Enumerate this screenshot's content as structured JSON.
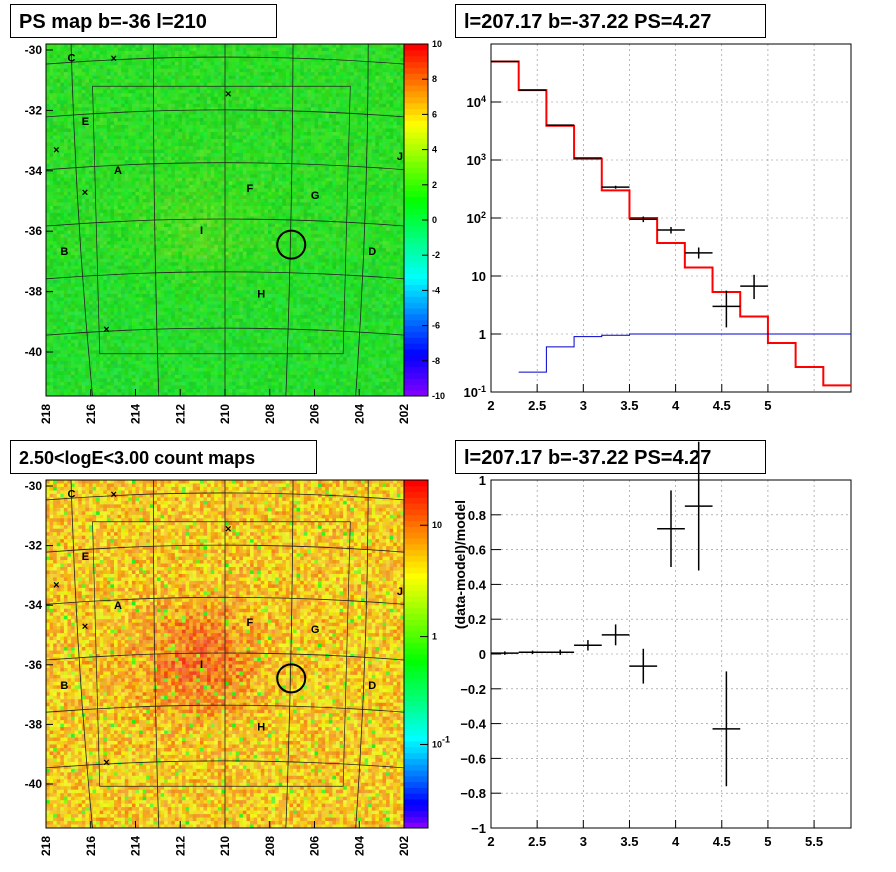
{
  "panels": {
    "tl_title": "PS map b=-36 l=210",
    "tr_title": "l=207.17 b=-37.22 PS=4.27",
    "bl_title": "2.50<logE<3.00 count maps",
    "br_title": "l=207.17 b=-37.22 PS=4.27"
  },
  "colors": {
    "data": "#000000",
    "model": "#ff0000",
    "ps": "#0000cc",
    "grid": "#888888"
  },
  "chart_data": [
    {
      "type": "heatmap",
      "title": "PS map b=-36 l=210",
      "x_ticks": [
        "218",
        "216",
        "214",
        "212",
        "210",
        "208",
        "206",
        "204",
        "202"
      ],
      "y_ticks": [
        "-30",
        "-32",
        "-34",
        "-36",
        "-38",
        "-40"
      ],
      "colorbar_ticks": [
        "10",
        "8",
        "6",
        "4",
        "2",
        "0",
        "-2",
        "-4",
        "-6",
        "-8",
        "-10"
      ],
      "colorbar_range": [
        -10,
        10
      ],
      "source_labels": [
        "C",
        "E",
        "A",
        "F",
        "G",
        "I",
        "B",
        "D",
        "H",
        "J"
      ]
    },
    {
      "type": "line",
      "title": "l=207.17 b=-37.22 PS=4.27",
      "xlim": [
        2,
        5.9
      ],
      "ylim_log": [
        0.1,
        100000
      ],
      "log_y": true,
      "x_ticks": [
        "2",
        "2.5",
        "3",
        "3.5",
        "4",
        "4.5",
        "5"
      ],
      "y_ticks": [
        "10^-1",
        "1",
        "10",
        "10^2",
        "10^3",
        "10^4"
      ],
      "series": [
        {
          "values_step": [
            [
              2.0,
              2.3,
              50000
            ],
            [
              2.3,
              2.6,
              16000
            ],
            [
              2.6,
              2.9,
              3900
            ],
            [
              2.9,
              3.2,
              1050
            ],
            [
              3.2,
              3.5,
              300
            ],
            [
              3.5,
              3.8,
              100
            ],
            [
              3.8,
              4.1,
              37
            ],
            [
              4.1,
              4.4,
              14
            ],
            [
              4.4,
              4.7,
              5.3
            ],
            [
              4.7,
              5.0,
              2.0
            ],
            [
              5.0,
              5.3,
              0.7
            ],
            [
              5.3,
              5.6,
              0.27
            ],
            [
              5.6,
              5.9,
              0.13
            ]
          ]
        },
        {
          "values_step": [
            [
              2.3,
              2.6,
              0.22
            ],
            [
              2.6,
              2.9,
              0.6
            ],
            [
              2.9,
              3.2,
              0.9
            ],
            [
              3.2,
              3.5,
              0.95
            ],
            [
              3.5,
              5.9,
              1.0
            ]
          ]
        },
        {
          "points": [
            {
              "x": 2.15,
              "y": 50000,
              "xerr": 0.15
            },
            {
              "x": 2.45,
              "y": 16000,
              "xerr": 0.15
            },
            {
              "x": 2.75,
              "y": 4000,
              "xerr": 0.15
            },
            {
              "x": 3.05,
              "y": 1080,
              "xerr": 0.15
            },
            {
              "x": 3.35,
              "y": 340,
              "xerr": 0.15,
              "ylo": 320,
              "yhi": 360
            },
            {
              "x": 3.65,
              "y": 95,
              "xerr": 0.15,
              "ylo": 85,
              "yhi": 106
            },
            {
              "x": 3.95,
              "y": 62,
              "xerr": 0.15,
              "ylo": 54,
              "yhi": 70
            },
            {
              "x": 4.25,
              "y": 25,
              "xerr": 0.15,
              "ylo": 20,
              "yhi": 31
            },
            {
              "x": 4.55,
              "y": 3.0,
              "xerr": 0.15,
              "ylo": 1.3,
              "yhi": 5.6
            },
            {
              "x": 4.85,
              "y": 6.7,
              "xerr": 0.15,
              "ylo": 4.0,
              "yhi": 10.5
            }
          ]
        }
      ]
    },
    {
      "type": "heatmap",
      "title": "2.50<logE<3.00 count maps",
      "x_ticks": [
        "218",
        "216",
        "214",
        "212",
        "210",
        "208",
        "206",
        "204",
        "202"
      ],
      "y_ticks": [
        "-30",
        "-32",
        "-34",
        "-36",
        "-38",
        "-40"
      ],
      "colorbar_ticks": [
        "10",
        "1",
        "10^-1"
      ],
      "log_scale": true,
      "source_labels": [
        "C",
        "E",
        "A",
        "F",
        "G",
        "I",
        "B",
        "D",
        "H",
        "J"
      ]
    },
    {
      "type": "scatter",
      "title": "l=207.17 b=-37.22 PS=4.27",
      "ylabel": "(data-model)/model",
      "xlim": [
        2,
        5.9
      ],
      "ylim": [
        -1,
        1
      ],
      "x_ticks": [
        "2",
        "2.5",
        "3",
        "3.5",
        "4",
        "4.5",
        "5",
        "5.5"
      ],
      "y_ticks": [
        "-1",
        "-0.8",
        "-0.6",
        "-0.4",
        "-0.2",
        "0",
        "0.2",
        "0.4",
        "0.6",
        "0.8",
        "1"
      ],
      "points": [
        {
          "x": 2.15,
          "y": 0.005,
          "xerr": 0.15,
          "yerr": 0.01
        },
        {
          "x": 2.45,
          "y": 0.01,
          "xerr": 0.15,
          "yerr": 0.01
        },
        {
          "x": 2.75,
          "y": 0.01,
          "xerr": 0.15,
          "yerr": 0.015
        },
        {
          "x": 3.05,
          "y": 0.05,
          "xerr": 0.15,
          "yerr": 0.03
        },
        {
          "x": 3.35,
          "y": 0.11,
          "xerr": 0.15,
          "yerr": 0.06
        },
        {
          "x": 3.65,
          "y": -0.07,
          "xerr": 0.15,
          "yerr": 0.1
        },
        {
          "x": 3.95,
          "y": 0.72,
          "xerr": 0.15,
          "yerr": 0.22
        },
        {
          "x": 4.25,
          "y": 0.85,
          "xerr": 0.15,
          "yerr": 0.37
        },
        {
          "x": 4.55,
          "y": -0.43,
          "xerr": 0.15,
          "yerr": 0.33
        }
      ]
    }
  ]
}
